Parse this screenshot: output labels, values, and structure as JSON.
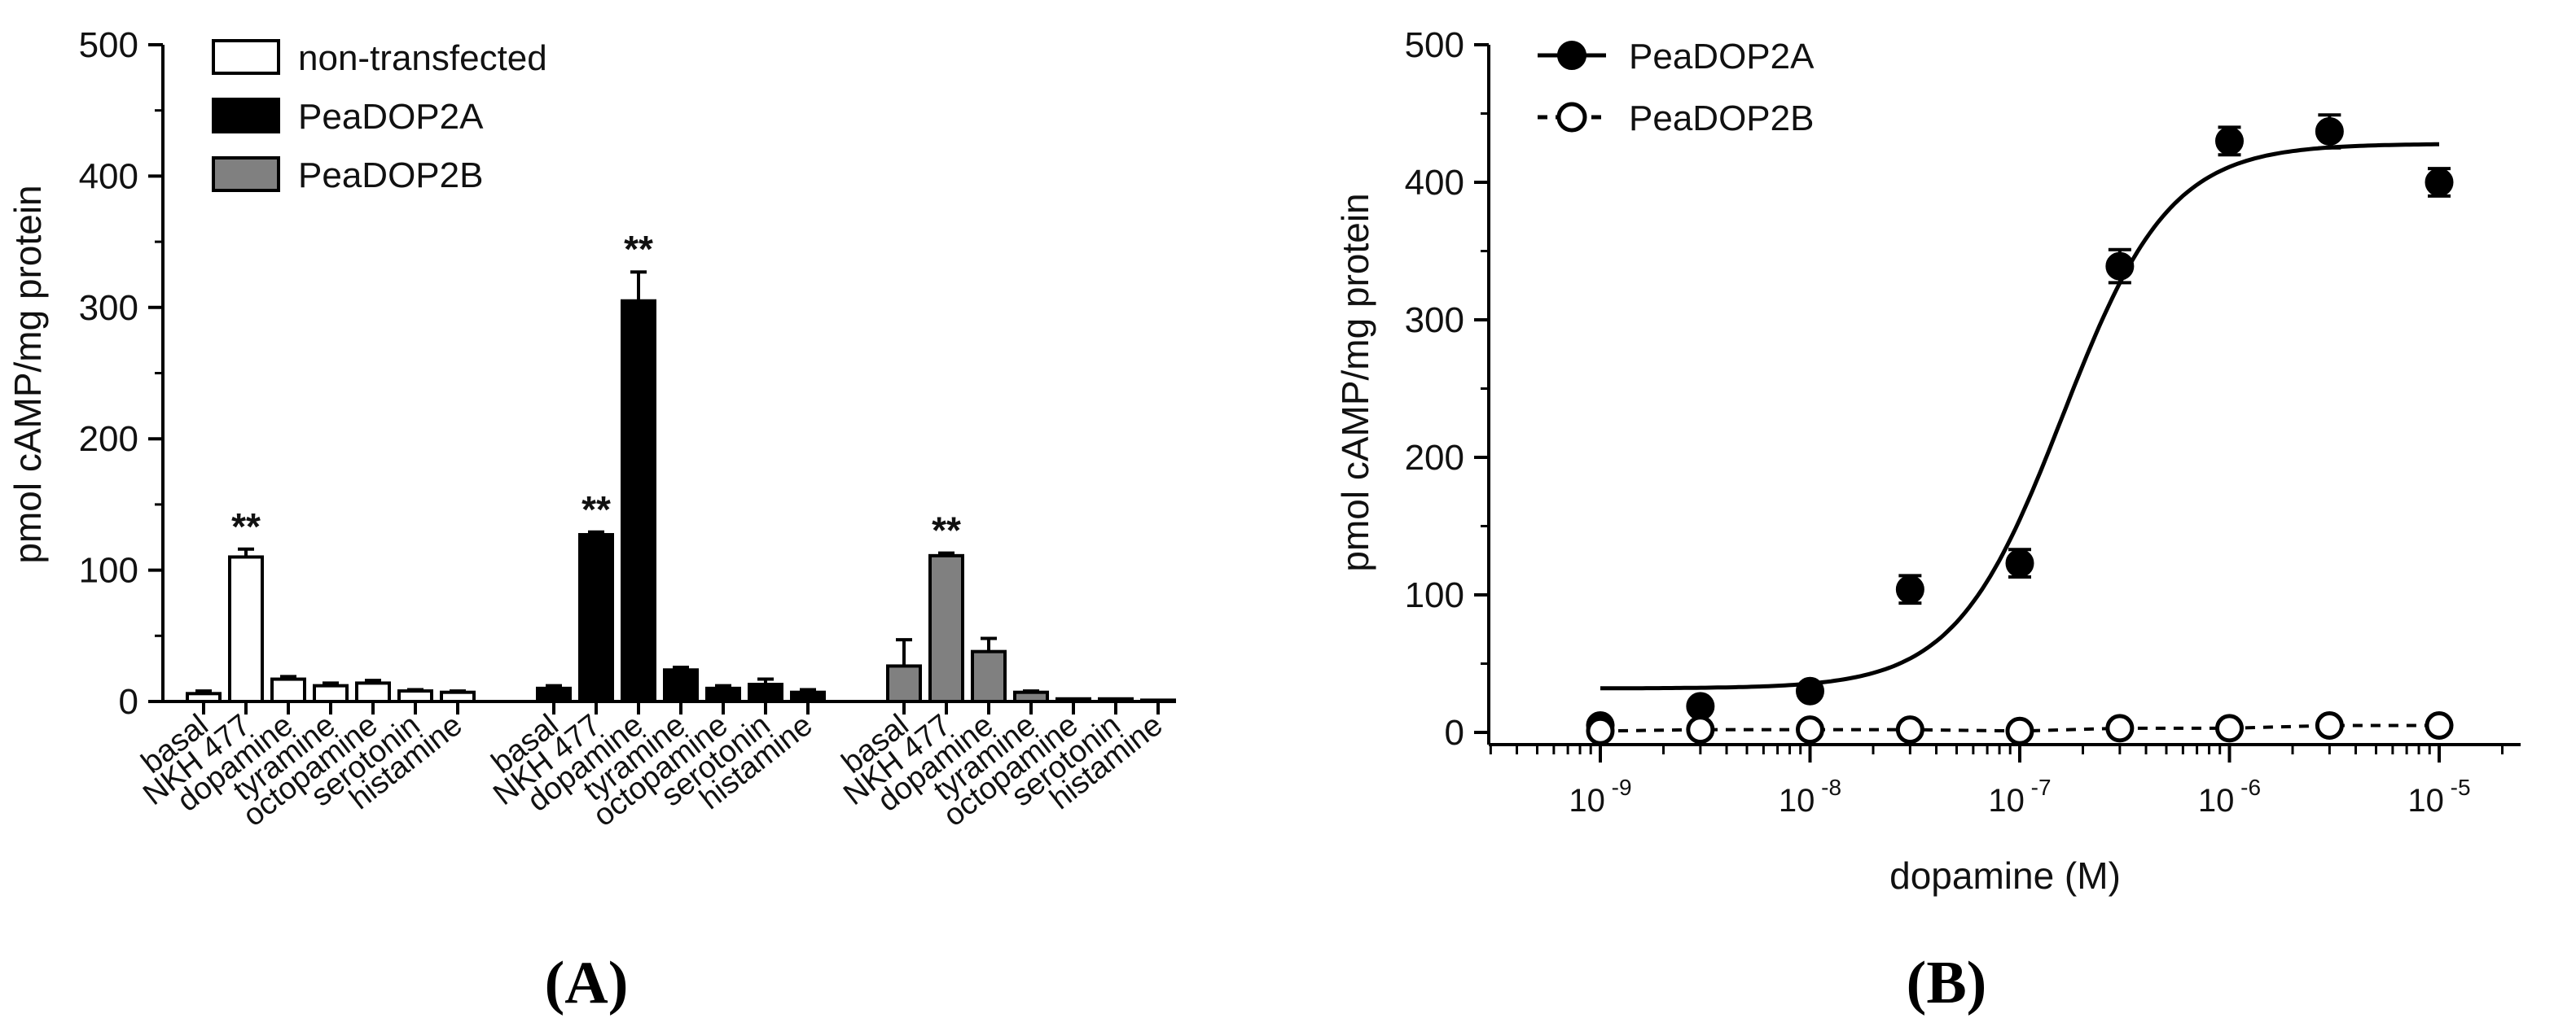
{
  "chart_data": [
    {
      "type": "bar",
      "panel_label": "(A)",
      "title": "",
      "xlabel": "",
      "ylabel": "pmol cAMP/mg protein",
      "ylim": [
        0,
        500
      ],
      "yticks": [
        0,
        100,
        200,
        300,
        400,
        500
      ],
      "grid": false,
      "legend_placement": "top-left",
      "categories": [
        "basal",
        "NKH 477",
        "dopamine",
        "tyramine",
        "octopamine",
        "serotonin",
        "histamine"
      ],
      "significance_marker": "**",
      "series": [
        {
          "name": "non-transfected",
          "color": "#ffffff",
          "values": [
            6,
            110,
            17,
            12,
            14,
            8,
            7
          ],
          "errors": [
            2,
            6,
            2,
            2,
            2,
            1,
            1
          ],
          "significant": [
            false,
            true,
            false,
            false,
            false,
            false,
            false
          ]
        },
        {
          "name": "PeaDOP2A",
          "color": "#000000",
          "values": [
            10,
            127,
            305,
            24,
            10,
            13,
            7
          ],
          "errors": [
            2,
            2,
            22,
            2,
            2,
            4,
            2
          ],
          "significant": [
            false,
            true,
            true,
            false,
            false,
            false,
            false
          ]
        },
        {
          "name": "PeaDOP2B",
          "color": "#808080",
          "values": [
            27,
            111,
            38,
            7,
            2,
            2,
            1
          ],
          "errors": [
            20,
            2,
            10,
            1,
            0,
            0,
            0
          ],
          "significant": [
            false,
            true,
            false,
            false,
            false,
            false,
            false
          ]
        }
      ]
    },
    {
      "type": "scatter",
      "panel_label": "(B)",
      "title": "",
      "xlabel": "dopamine (M)",
      "ylabel": "pmol cAMP/mg protein",
      "xscale": "log",
      "xlim": [
        3e-10,
        2.5e-05
      ],
      "ylim": [
        0,
        500
      ],
      "yticks": [
        0,
        100,
        200,
        300,
        400,
        500
      ],
      "xticks": [
        {
          "value": 1e-09,
          "base": "10",
          "exp": "-9"
        },
        {
          "value": 1e-08,
          "base": "10",
          "exp": "-8"
        },
        {
          "value": 1e-07,
          "base": "10",
          "exp": "-7"
        },
        {
          "value": 1e-06,
          "base": "10",
          "exp": "-6"
        },
        {
          "value": 1e-05,
          "base": "10",
          "exp": "-5"
        }
      ],
      "grid": false,
      "legend_placement": "top-left",
      "series": [
        {
          "name": "PeaDOP2A",
          "marker": "filled-circle",
          "line_style": "solid",
          "x": [
            1e-09,
            3e-09,
            1e-08,
            3e-08,
            1e-07,
            3e-07,
            1e-06,
            3e-06,
            1e-05
          ],
          "y": [
            5,
            19,
            30,
            104,
            123,
            339,
            430,
            437,
            400
          ],
          "errors": [
            3,
            3,
            3,
            10,
            10,
            12,
            10,
            12,
            10
          ],
          "fit": {
            "bottom": 32,
            "top": 428,
            "ec50": 1.6e-07,
            "hill": 1.7
          }
        },
        {
          "name": "PeaDOP2B",
          "marker": "open-circle",
          "line_style": "dashed",
          "x": [
            1e-09,
            3e-09,
            1e-08,
            3e-08,
            1e-07,
            3e-07,
            1e-06,
            3e-06,
            1e-05
          ],
          "y": [
            1,
            2,
            2,
            2,
            1,
            3,
            3,
            5,
            5
          ],
          "errors": [
            1,
            1,
            1,
            1,
            1,
            1,
            1,
            1,
            1
          ]
        }
      ]
    }
  ]
}
